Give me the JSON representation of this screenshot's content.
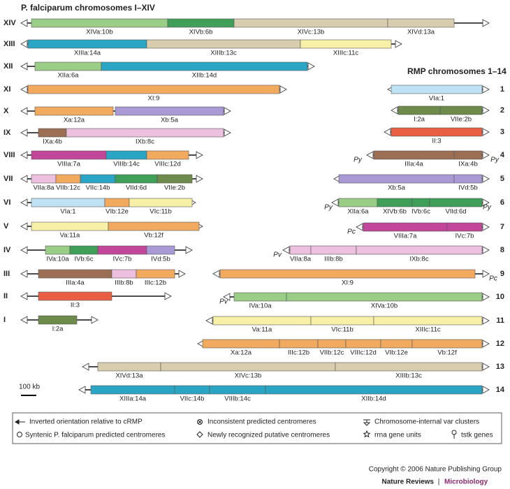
{
  "title_left": "P. falciparum chromosomes I–XIV",
  "title_right": "RMP chromosomes 1–14",
  "pf_chromosomes": [
    {
      "name": "XIV",
      "segments": [
        "XIVa:10b",
        "XIVb:6b",
        "XIVc:13b",
        "XIVd:13a"
      ]
    },
    {
      "name": "XIII",
      "segments": [
        "XIIIa:14a",
        "XIIIb:13c",
        "XIIIc:11c"
      ]
    },
    {
      "name": "XII",
      "segments": [
        "XIIa:6a",
        "XIIb:14d"
      ]
    },
    {
      "name": "XI",
      "segments": [
        "XI:9"
      ]
    },
    {
      "name": "X",
      "segments": [
        "Xa:12a",
        "Xb:5a"
      ]
    },
    {
      "name": "IX",
      "segments": [
        "IXa:4b",
        "IXb:8c"
      ]
    },
    {
      "name": "VIII",
      "segments": [
        "VIIIa:7a",
        "VIIIb:14c",
        "VIIIc:12d"
      ]
    },
    {
      "name": "VII",
      "segments": [
        "VIIa:8a",
        "VIIb:12c",
        "VIIc:14b",
        "VIId:6d",
        "VIIe:2b"
      ]
    },
    {
      "name": "VI",
      "segments": [
        "VIa:1",
        "VIb:12e",
        "VIc:11b"
      ]
    },
    {
      "name": "V",
      "segments": [
        "Va:11a",
        "Vb:12f"
      ]
    },
    {
      "name": "IV",
      "segments": [
        "IVa:10a",
        "IVb:6c",
        "IVc:7b",
        "IVd:5b"
      ]
    },
    {
      "name": "III",
      "segments": [
        "IIIa:4a",
        "IIIb:8b",
        "IIIc:12b"
      ]
    },
    {
      "name": "II",
      "segments": [
        "II:3"
      ]
    },
    {
      "name": "I",
      "segments": [
        "I:2a"
      ]
    }
  ],
  "rmp_chromosomes": [
    {
      "name": "1",
      "segments": [
        "VIa:1"
      ]
    },
    {
      "name": "2",
      "segments": [
        "I:2a",
        "VIIe:2b"
      ]
    },
    {
      "name": "3",
      "segments": [
        "II:3"
      ]
    },
    {
      "name": "4",
      "segments": [
        "IIIa:4a",
        "IXa:4b"
      ],
      "annotations": [
        "Py",
        "Py"
      ]
    },
    {
      "name": "5",
      "segments": [
        "Xb:5a",
        "IVd:5b"
      ]
    },
    {
      "name": "6",
      "segments": [
        "XIIa:6a",
        "XIVb:6b",
        "IVb:6c",
        "VIId:6d"
      ],
      "annotations": [
        "Py",
        "Py"
      ]
    },
    {
      "name": "7",
      "segments": [
        "VIIIa:7a",
        "IVc:7b"
      ],
      "annotations": [
        "Pc"
      ]
    },
    {
      "name": "8",
      "segments": [
        "VIIa:8a",
        "IIIb:8b",
        "IXb:8c"
      ],
      "annotations": [
        "Pv"
      ]
    },
    {
      "name": "9",
      "segments": [
        "XI:9"
      ],
      "annotations": [
        "Pc"
      ]
    },
    {
      "name": "10",
      "segments": [
        "IVa:10a",
        "XIVa:10b"
      ],
      "annotations": [
        "Pv"
      ]
    },
    {
      "name": "11",
      "segments": [
        "Va:11a",
        "VIc:11b",
        "XIIIc:11c"
      ]
    },
    {
      "name": "12",
      "segments": [
        "Xa:12a",
        "IIIc:12b",
        "VIIb:12c",
        "VIIIc:12d",
        "VIb:12e",
        "Vb:12f"
      ]
    },
    {
      "name": "13",
      "segments": [
        "XIVd:13a",
        "XIVc:13b",
        "XIIIb:13c"
      ]
    },
    {
      "name": "14",
      "segments": [
        "XIIIa:14a",
        "VIIc:14b",
        "VIIIb:14c",
        "XIIb:14d"
      ]
    }
  ],
  "scale_bar": "100 kb",
  "legend": [
    "Inverted orientation relative to cRMP",
    "Inconsistent predicted centromeres",
    "Chromosome-internal var clusters",
    "Syntenic P. falciparum predicted centromeres",
    "Newly recognized putative centromeres",
    "rrna gene units",
    "tstk genes"
  ],
  "footer": {
    "copyright": "Copyright © 2006 Nature Publishing Group",
    "journal": "Nature Reviews",
    "separator": "|",
    "section": "Microbiology"
  }
}
